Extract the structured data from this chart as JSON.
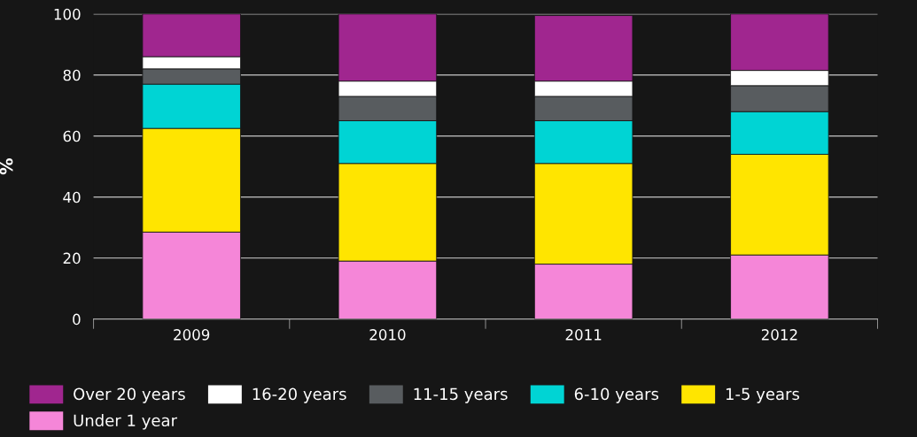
{
  "chart_data": {
    "type": "bar",
    "stacked": true,
    "ylabel": "%",
    "categories": [
      "2009",
      "2010",
      "2011",
      "2012"
    ],
    "series": [
      {
        "name": "Under 1 year",
        "color": "#f586d8",
        "values": [
          28.5,
          19,
          18,
          21
        ]
      },
      {
        "name": "1-5 years",
        "color": "#ffe500",
        "values": [
          34,
          32,
          33,
          33
        ]
      },
      {
        "name": "6-10 years",
        "color": "#00d4d4",
        "values": [
          14.5,
          14,
          14,
          14
        ]
      },
      {
        "name": "11-15 years",
        "color": "#585c5f",
        "values": [
          5,
          8,
          8,
          8.5
        ]
      },
      {
        "name": "16-20 years",
        "color": "#ffffff",
        "values": [
          4,
          5,
          5,
          5
        ]
      },
      {
        "name": "Over 20 years",
        "color": "#a0268f",
        "values": [
          14,
          22,
          21.5,
          18.5
        ]
      }
    ],
    "ylim": [
      0,
      100
    ],
    "yticks": [
      0,
      20,
      40,
      60,
      80,
      100
    ],
    "grid": "y",
    "legend": "bottom"
  }
}
